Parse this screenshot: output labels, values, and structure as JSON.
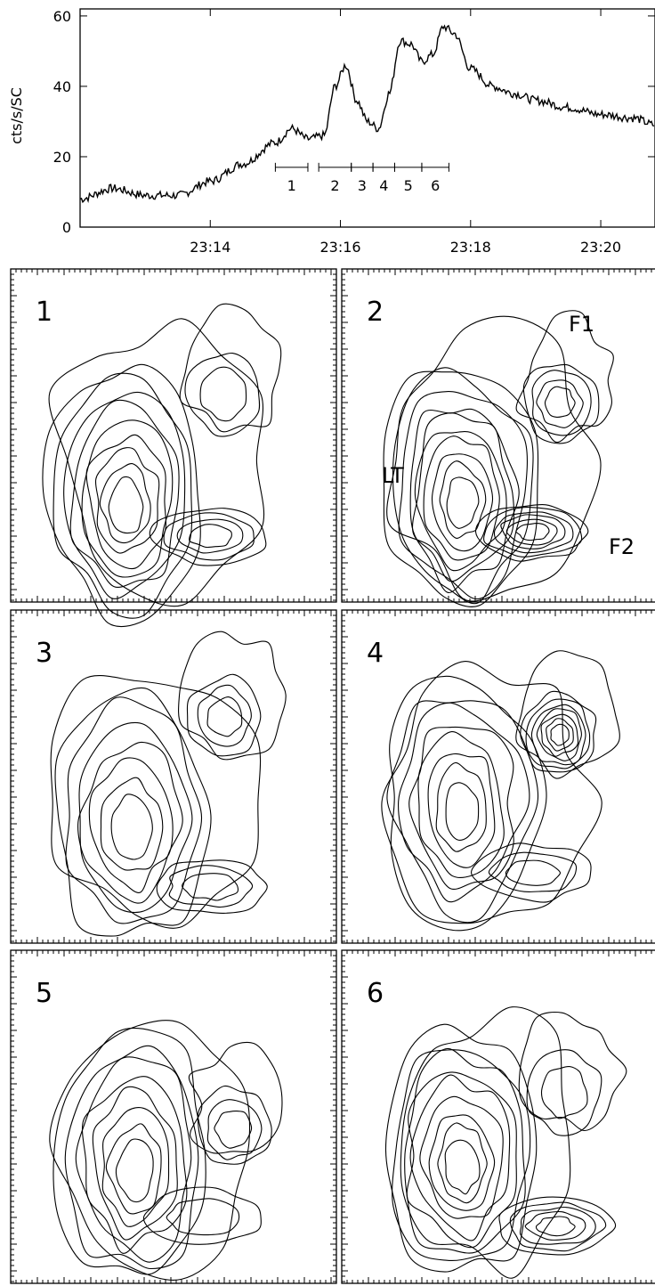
{
  "chart_data": [
    {
      "type": "line",
      "title": "",
      "xlabel": "",
      "ylabel": "cts/s/SC",
      "yticks": [
        "0",
        "20",
        "40",
        "60"
      ],
      "ylim": [
        0,
        62
      ],
      "xticks": [
        "23:14",
        "23:16",
        "23:18",
        "23:20"
      ],
      "series": [
        {
          "x": [
            "23:12:00",
            "23:12:30",
            "23:13:00",
            "23:13:30",
            "23:14:00",
            "23:14:30",
            "23:15:00",
            "23:15:15",
            "23:15:30",
            "23:15:45",
            "23:15:55",
            "23:16:05",
            "23:16:15",
            "23:16:25",
            "23:16:35",
            "23:16:45",
            "23:16:55",
            "23:17:05",
            "23:17:15",
            "23:17:25",
            "23:17:35",
            "23:17:45",
            "23:18:00",
            "23:18:20",
            "23:18:40",
            "23:19:00",
            "23:19:30",
            "23:20:00",
            "23:20:30",
            "23:20:50"
          ],
          "values": [
            8,
            11,
            9,
            9,
            13,
            18,
            24,
            28,
            25,
            26,
            40,
            46,
            36,
            30,
            28,
            38,
            53,
            52,
            47,
            49,
            57,
            55,
            45,
            40,
            38,
            36,
            34,
            32,
            31,
            29
          ]
        }
      ],
      "intervals": [
        {
          "label": "1",
          "start": "23:15:00",
          "end": "23:15:30"
        },
        {
          "label": "2",
          "start": "23:15:40",
          "end": "23:16:10"
        },
        {
          "label": "3",
          "start": "23:16:10",
          "end": "23:16:30"
        },
        {
          "label": "4",
          "start": "23:16:30",
          "end": "23:16:50"
        },
        {
          "label": "5",
          "start": "23:16:50",
          "end": "23:17:15"
        },
        {
          "label": "6",
          "start": "23:17:15",
          "end": "23:17:40"
        }
      ]
    },
    {
      "type": "contour",
      "panels": [
        {
          "label": "1",
          "annotations": []
        },
        {
          "label": "2",
          "annotations": [
            "F1",
            "LT",
            "F2"
          ]
        },
        {
          "label": "3",
          "annotations": []
        },
        {
          "label": "4",
          "annotations": []
        },
        {
          "label": "5",
          "annotations": []
        },
        {
          "label": "6",
          "annotations": []
        }
      ]
    }
  ]
}
